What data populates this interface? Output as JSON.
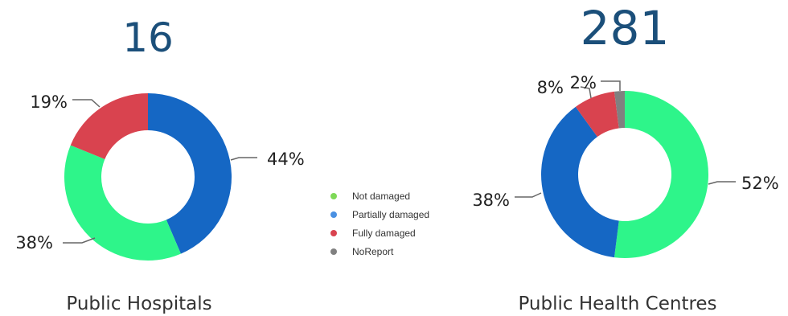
{
  "colors": {
    "not_damaged": "#2ef58a",
    "partially_damaged": "#1567c4",
    "fully_damaged": "#d9434f",
    "no_report": "#808080",
    "legend_not_damaged": "#7ed957",
    "legend_partially_damaged": "#4a90e2",
    "legend_fully_damaged": "#d9434f",
    "legend_no_report": "#808080"
  },
  "legend": {
    "placement": "center",
    "items": [
      {
        "label": "Not damaged",
        "color_key": "legend_not_damaged"
      },
      {
        "label": "Partially damaged",
        "color_key": "legend_partially_damaged"
      },
      {
        "label": "Fully damaged",
        "color_key": "legend_fully_damaged"
      },
      {
        "label": "NoReport",
        "color_key": "legend_no_report"
      }
    ]
  },
  "chart_data": [
    {
      "type": "pie",
      "variant": "donut",
      "total": "16",
      "title": "Public Hospitals",
      "slices": [
        {
          "name": "Partially damaged",
          "value": 44,
          "label": "44%",
          "color_key": "partially_damaged"
        },
        {
          "name": "Not damaged",
          "value": 38,
          "label": "38%",
          "color_key": "not_damaged"
        },
        {
          "name": "Fully damaged",
          "value": 19,
          "label": "19%",
          "color_key": "fully_damaged"
        }
      ]
    },
    {
      "type": "pie",
      "variant": "donut",
      "total": "281",
      "title": "Public Health Centres",
      "slices": [
        {
          "name": "Not damaged",
          "value": 52,
          "label": "52%",
          "color_key": "not_damaged"
        },
        {
          "name": "Partially damaged",
          "value": 38,
          "label": "38%",
          "color_key": "partially_damaged"
        },
        {
          "name": "Fully damaged",
          "value": 8,
          "label": "8%",
          "color_key": "fully_damaged"
        },
        {
          "name": "NoReport",
          "value": 2,
          "label": "2%",
          "color_key": "no_report"
        }
      ]
    }
  ]
}
